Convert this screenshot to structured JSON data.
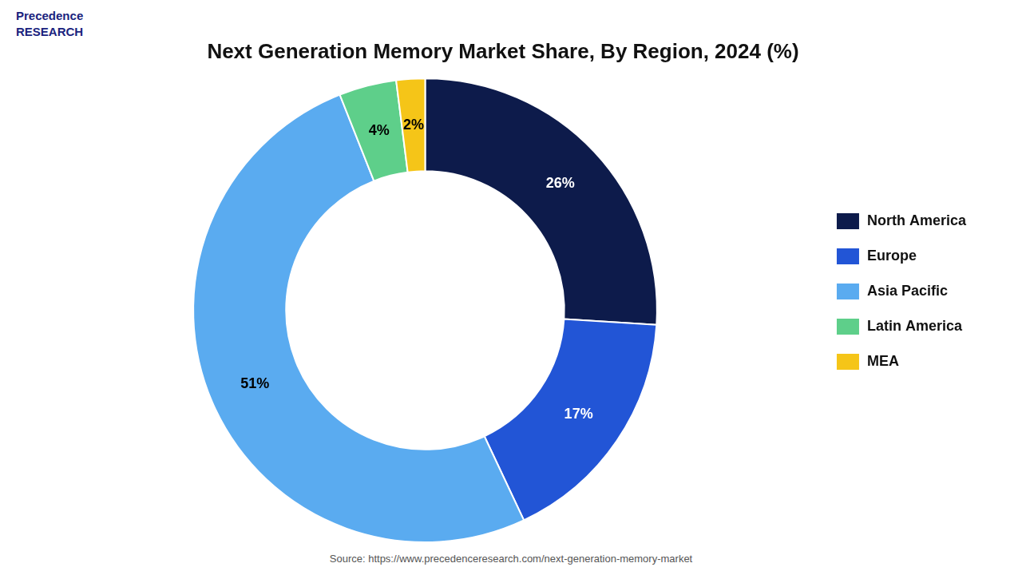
{
  "chart_data": {
    "type": "doughnut",
    "title": "Next Generation Memory Market Share, By Region, 2024 (%)",
    "categories": [
      "North America",
      "Europe",
      "Asia Pacific",
      "Latin America",
      "MEA"
    ],
    "values": [
      26,
      17,
      51,
      4,
      2
    ],
    "value_labels": [
      "26%",
      "17%",
      "51%",
      "4%",
      "2%"
    ],
    "colors": [
      "#0d1b4b",
      "#2255d6",
      "#5aabf0",
      "#5ecf8a",
      "#f5c518"
    ],
    "data_labels": true,
    "legend": "right",
    "annotations": [
      "Precedence\nRESEARCH",
      "Source: https://www.precedenceresearch.com/next-generation-memory-market"
    ]
  }
}
